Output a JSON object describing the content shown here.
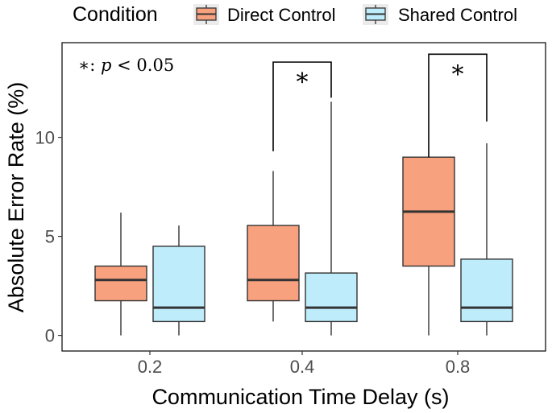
{
  "chart_data": {
    "type": "boxplot",
    "title": "",
    "xlabel": "Communication Time Delay (s)",
    "ylabel": "Absolute Error Rate (%)",
    "categories": [
      "0.2",
      "0.4",
      "0.8"
    ],
    "yticks": [
      0,
      5,
      10
    ],
    "ylim": [
      -0.5,
      14.9
    ],
    "grid": false,
    "legend": {
      "title": "Condition",
      "position": "top"
    },
    "series": [
      {
        "name": "Direct Control",
        "color": "#F8A17E",
        "boxes": [
          {
            "category": "0.2",
            "whisker_low": 0.0,
            "q1": 1.75,
            "median": 2.8,
            "q3": 3.5,
            "whisker_high": 6.2
          },
          {
            "category": "0.4",
            "whisker_low": 0.7,
            "q1": 1.75,
            "median": 2.8,
            "q3": 5.55,
            "whisker_high": 8.3
          },
          {
            "category": "0.8",
            "whisker_low": 0.0,
            "q1": 3.5,
            "median": 6.25,
            "q3": 9.0,
            "whisker_high": 9.0
          }
        ]
      },
      {
        "name": "Shared Control",
        "color": "#BEECFA",
        "boxes": [
          {
            "category": "0.2",
            "whisker_low": 0.0,
            "q1": 0.7,
            "median": 1.4,
            "q3": 4.5,
            "whisker_high": 5.55
          },
          {
            "category": "0.4",
            "whisker_low": 0.0,
            "q1": 0.7,
            "median": 1.4,
            "q3": 3.15,
            "whisker_high": 11.8
          },
          {
            "category": "0.8",
            "whisker_low": 0.0,
            "q1": 0.7,
            "median": 1.4,
            "q3": 3.85,
            "whisker_high": 9.7
          }
        ]
      }
    ],
    "significance": [
      {
        "category": "0.4",
        "label": "*",
        "bracket_top": 13.8,
        "left_drop_to": 9.3,
        "right_drop_to": 12.0
      },
      {
        "category": "0.8",
        "label": "*",
        "bracket_top": 14.2,
        "left_drop_to": 9.0,
        "right_drop_to": 10.8
      }
    ],
    "annotation": {
      "prefix": "∗: ",
      "variable": "p",
      "relation": " < 0.05"
    }
  }
}
